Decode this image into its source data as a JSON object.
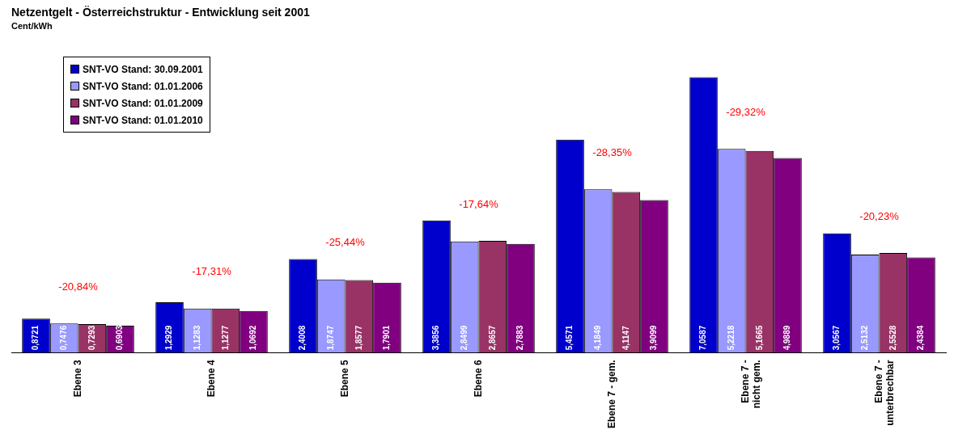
{
  "chart_data": {
    "type": "bar",
    "title": "Netzentgelt - Österreichstruktur - Entwicklung seit 2001",
    "subtitle": "Cent/kWh",
    "categories": [
      "Ebene 3",
      "Ebene 4",
      "Ebene 5",
      "Ebene 6",
      "Ebene 7 - gem.",
      "Ebene 7 - nicht gem.",
      "Ebene 7 - unterbrechbar"
    ],
    "series": [
      {
        "name": "SNT-VO Stand: 30.09.2001",
        "color": "#0000cc",
        "values": [
          0.8721,
          1.2929,
          2.4008,
          3.3856,
          5.4571,
          7.0587,
          3.0567
        ],
        "value_labels": [
          "0,8721",
          "1,2929",
          "2,4008",
          "3,3856",
          "5,4571",
          "7,0587",
          "3,0567"
        ]
      },
      {
        "name": "SNT-VO Stand: 01.01.2006",
        "color": "#9999ff",
        "values": [
          0.7476,
          1.1283,
          1.8747,
          2.8499,
          4.1849,
          5.2218,
          2.5132
        ],
        "value_labels": [
          "0,7476",
          "1,1283",
          "1,8747",
          "2,8499",
          "4,1849",
          "5,2218",
          "2,5132"
        ]
      },
      {
        "name": "SNT-VO Stand: 01.01.2009",
        "color": "#993366",
        "values": [
          0.7293,
          1.1277,
          1.8577,
          2.8657,
          4.1147,
          5.1665,
          2.5528
        ],
        "value_labels": [
          "0,7293",
          "1,1277",
          "1,8577",
          "2,8657",
          "4,1147",
          "5,1665",
          "2,5528"
        ]
      },
      {
        "name": "SNT-VO Stand: 01.01.2010",
        "color": "#800080",
        "values": [
          0.6903,
          1.0692,
          1.7901,
          2.7883,
          3.9099,
          4.9889,
          2.4384
        ],
        "value_labels": [
          "0,6903",
          "1,0692",
          "1,7901",
          "2,7883",
          "3,9099",
          "4,9889",
          "2,4384"
        ]
      }
    ],
    "annotations": [
      "-20,84%",
      "-17,31%",
      "-25,44%",
      "-17,64%",
      "-28,35%",
      "-29,32%",
      "-20,23%"
    ],
    "legend": "top left",
    "grid": false,
    "tick_labels": "x"
  }
}
